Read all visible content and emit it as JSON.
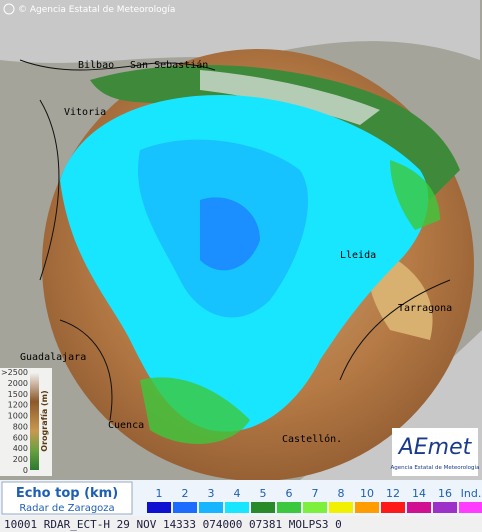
{
  "header": {
    "copyright": "© Agencia Estatal de Meteorología"
  },
  "map": {
    "places": [
      {
        "label": "Bilbao"
      },
      {
        "label": "San Sebastián"
      },
      {
        "label": "Vitoria"
      },
      {
        "label": "Lleida"
      },
      {
        "label": "Tarragona"
      },
      {
        "label": "Guadalajara"
      },
      {
        "label": "Cuenca"
      },
      {
        "label": "Castellón."
      }
    ]
  },
  "orography": {
    "title": "Orografía (m)",
    "labels": [
      ">2500",
      "2000",
      "1500",
      "1200",
      "1000",
      "800",
      "600",
      "400",
      "200",
      "0"
    ]
  },
  "logo": {
    "name": "AEmet",
    "subtitle": "Agencia Estatal de Meteorología"
  },
  "legend": {
    "title": "Echo top (km)",
    "subtitle": "Radar de Zaragoza",
    "items": [
      {
        "label": "1",
        "color": "#1010d0"
      },
      {
        "label": "2",
        "color": "#1e6cff"
      },
      {
        "label": "3",
        "color": "#17b4ff"
      },
      {
        "label": "4",
        "color": "#18e6ff"
      },
      {
        "label": "5",
        "color": "#2a8a2a"
      },
      {
        "label": "6",
        "color": "#3cc83c"
      },
      {
        "label": "7",
        "color": "#7cf03c"
      },
      {
        "label": "8",
        "color": "#f0f000"
      },
      {
        "label": "10",
        "color": "#ff9c00"
      },
      {
        "label": "12",
        "color": "#ff1a1a"
      },
      {
        "label": "14",
        "color": "#d01090"
      },
      {
        "label": "16",
        "color": "#9c30c8"
      },
      {
        "label": "Ind.",
        "color": "#ff3cff"
      }
    ]
  },
  "footer": {
    "text": "10001 RDAR_ECT-H 29 NOV 14333 074000 07381 MOLPS3 0"
  }
}
